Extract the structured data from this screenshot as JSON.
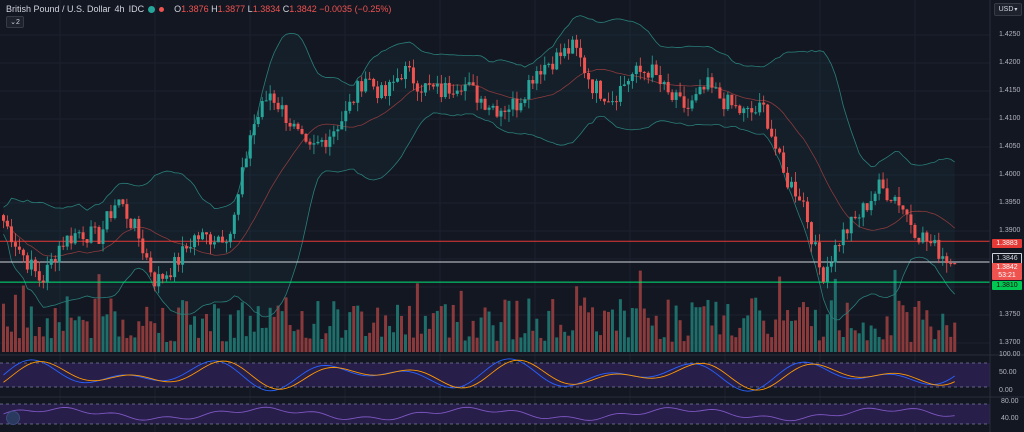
{
  "header": {
    "symbol": "British Pound / U.S. Dollar",
    "interval": "4h",
    "source": "IDC",
    "open_label": "O",
    "open": "1.3876",
    "high_label": "H",
    "high": "1.3877",
    "low_label": "L",
    "low": "1.3834",
    "close_label": "C",
    "close": "1.3842",
    "change": "−0.0035 (−0.25%)",
    "collapse": "2"
  },
  "currency": "USD",
  "price_axis": {
    "ticks": [
      "1.4250",
      "1.4200",
      "1.4150",
      "1.4100",
      "1.4050",
      "1.4000",
      "1.3950",
      "1.3900",
      "1.3850",
      "1.3800",
      "1.3750",
      "1.3700"
    ]
  },
  "price_tags": {
    "red_line": "1.3883",
    "white_line": "1.3846",
    "current_price": "1.3842",
    "countdown": "53:21",
    "green_line": "1.3810"
  },
  "oscillator1": {
    "ticks": [
      "100.00",
      "50.00",
      "0.00"
    ]
  },
  "oscillator2": {
    "ticks": [
      "80.00",
      "40.00"
    ]
  },
  "colors": {
    "up": "#26a69a",
    "down": "#ef5350",
    "up_volume": "#1e6e6a",
    "down_volume": "#8b3a3c",
    "bands": "#2a7f7a",
    "mid_band": "#8a3a3c",
    "red_line": "#e53935",
    "green_line": "#00e676",
    "white_line": "#d1d4dc",
    "osc_bg": "#2a1f4f",
    "stoch_k": "#2962ff",
    "stoch_d": "#ff9800",
    "rsi": "#7e57c2"
  },
  "chart_data": {
    "type": "candlestick",
    "ylim": [
      1.3685,
      1.4275
    ],
    "levels": {
      "resistance": 1.3883,
      "last": 1.3846,
      "support": 1.381
    },
    "close_path": [
      1.392,
      1.386,
      1.381,
      1.388,
      1.39,
      1.389,
      1.396,
      1.39,
      1.381,
      1.384,
      1.389,
      1.389,
      1.39,
      1.408,
      1.415,
      1.41,
      1.404,
      1.407,
      1.411,
      1.418,
      1.414,
      1.419,
      1.416,
      1.415,
      1.417,
      1.414,
      1.412,
      1.413,
      1.419,
      1.421,
      1.423,
      1.416,
      1.414,
      1.418,
      1.419,
      1.414,
      1.412,
      1.416,
      1.413,
      1.411,
      1.412,
      1.4,
      1.396,
      1.382,
      1.389,
      1.393,
      1.398,
      1.396,
      1.39,
      1.387,
      1.3842
    ],
    "volume_range": [
      0,
      1
    ],
    "osc1_range": [
      0,
      100
    ],
    "osc2_range": [
      20,
      90
    ]
  }
}
